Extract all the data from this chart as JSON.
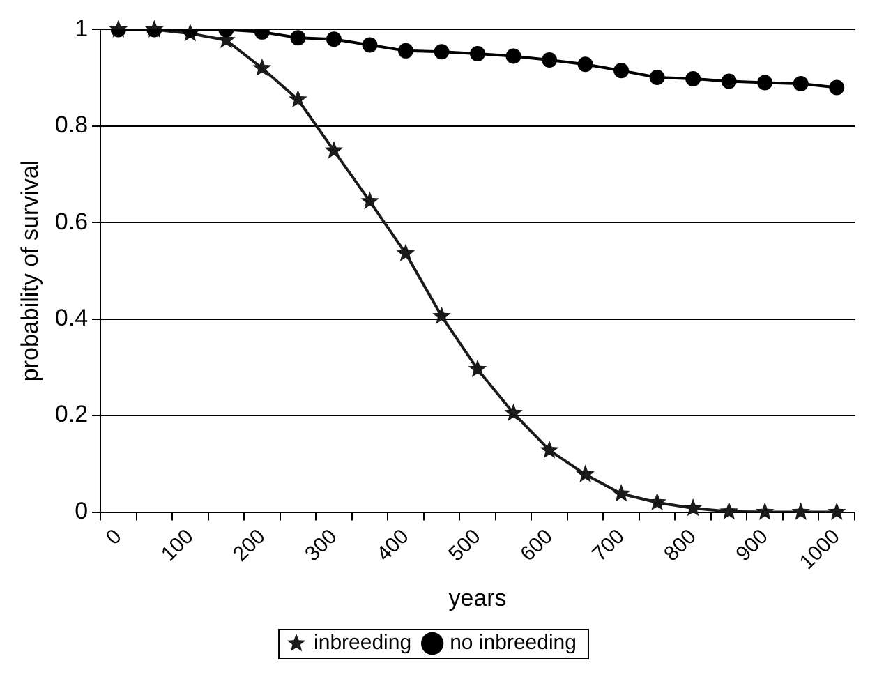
{
  "chart_data": {
    "type": "line",
    "xlabel": "years",
    "ylabel": "probability of survival",
    "categories": [
      "0",
      null,
      "100",
      null,
      "200",
      null,
      "300",
      null,
      "400",
      null,
      "500",
      null,
      "600",
      null,
      "700",
      null,
      "800",
      null,
      "900",
      null,
      "1000"
    ],
    "series": [
      {
        "name": "inbreeding",
        "color": "#1a1a1a",
        "marker": "star",
        "values": [
          1,
          1,
          0.992,
          0.978,
          0.92,
          0.855,
          0.749,
          0.644,
          0.536,
          0.406,
          0.296,
          0.205,
          0.128,
          0.078,
          0.038,
          0.02,
          0.008,
          0.001,
          0,
          0,
          0
        ]
      },
      {
        "name": "no inbreeding",
        "color": "#000000",
        "marker": "circle",
        "values": [
          1,
          1,
          1,
          1,
          0.995,
          0.983,
          0.98,
          0.968,
          0.956,
          0.954,
          0.95,
          0.945,
          0.937,
          0.928,
          0.915,
          0.901,
          0.898,
          0.893,
          0.89,
          0.888,
          0.88
        ]
      }
    ],
    "ylim": [
      0,
      1
    ],
    "yticks": [
      0,
      0.2,
      0.4,
      0.6,
      0.8,
      1
    ],
    "grid": "y",
    "legend": "bottom",
    "line_style": "solid"
  }
}
